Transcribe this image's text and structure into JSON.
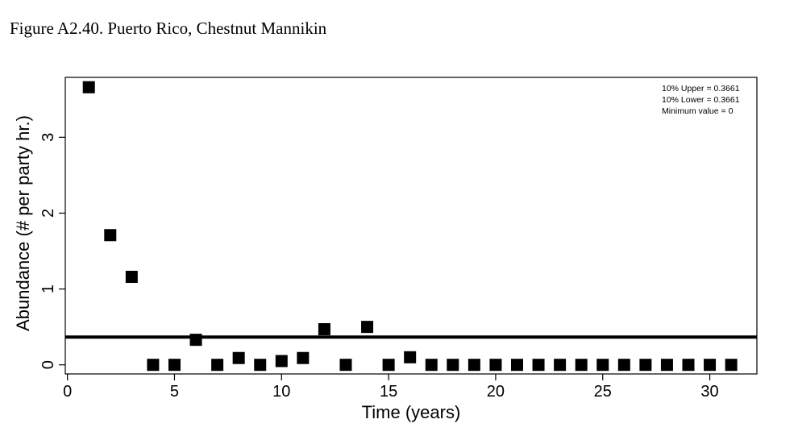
{
  "figure_title": "Figure A2.40. Puerto Rico, Chestnut Mannikin",
  "chart_data": {
    "type": "scatter",
    "title": "",
    "xlabel": "Time (years)",
    "ylabel": "Abundance (# per party hr.)",
    "xlim": [
      -0.1,
      32.2
    ],
    "ylim": [
      -0.12,
      3.79
    ],
    "xticks": [
      0,
      5,
      10,
      15,
      20,
      25,
      30
    ],
    "yticks": [
      0,
      1,
      2,
      3
    ],
    "x": [
      1,
      2,
      3,
      4,
      5,
      6,
      7,
      8,
      9,
      10,
      11,
      12,
      13,
      14,
      15,
      16,
      17,
      18,
      19,
      20,
      21,
      22,
      23,
      24,
      25,
      26,
      27,
      28,
      29,
      30,
      31
    ],
    "y": [
      3.66,
      1.71,
      1.16,
      0,
      0,
      0.33,
      0,
      0.09,
      0,
      0.05,
      0.09,
      0.47,
      0,
      0.5,
      0,
      0.1,
      0,
      0,
      0,
      0,
      0,
      0,
      0,
      0,
      0,
      0,
      0,
      0,
      0,
      0,
      0
    ],
    "reference_line": {
      "y": 0.3661
    },
    "annotations": [
      "10% Upper =  0.3661",
      "10% Lower =  0.3661",
      "Minimum value =  0"
    ],
    "marker": "filled-square",
    "marker_color": "#000000"
  }
}
